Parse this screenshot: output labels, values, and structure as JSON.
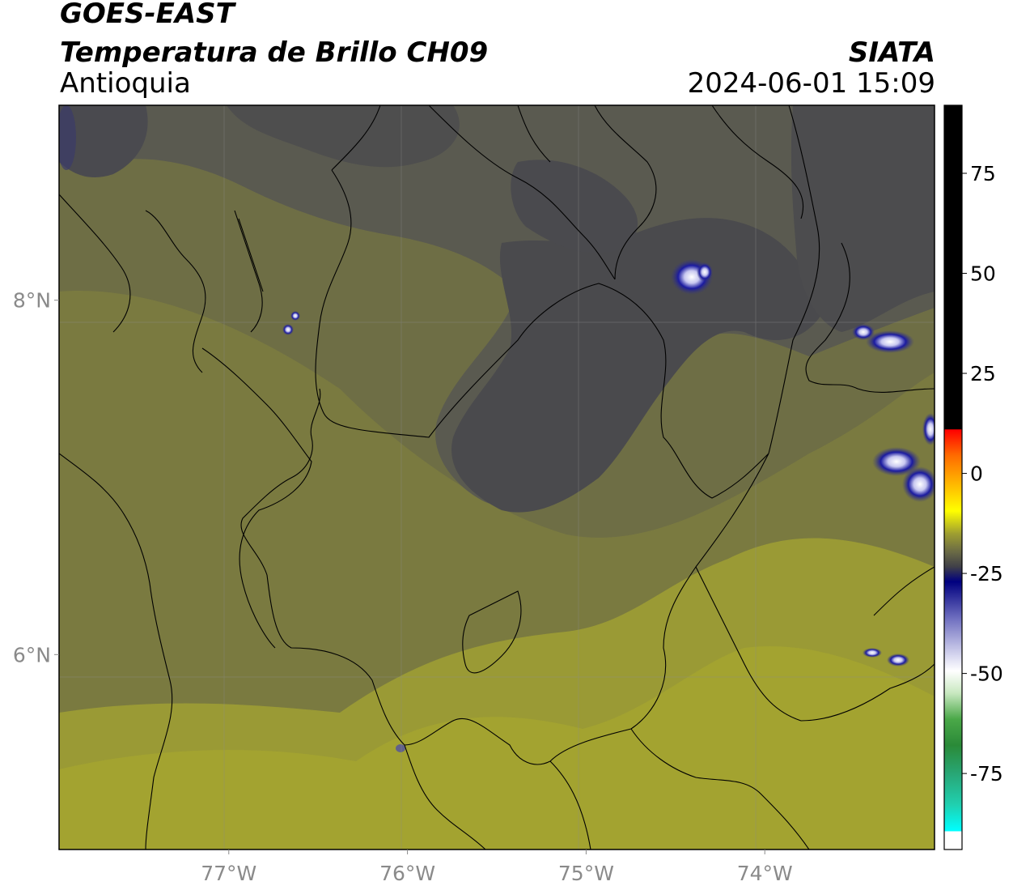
{
  "header": {
    "satellite": "GOES-EAST",
    "product": "Temperatura de Brillo CH09",
    "organization": "SIATA",
    "region": "Antioquia",
    "datetime": "2024-06-01 15:09"
  },
  "map": {
    "lon_range": [
      -77.95,
      -73.05
    ],
    "lat_range": [
      4.9,
      9.1
    ],
    "lon_ticks": [
      {
        "value": -77,
        "label": "77°W"
      },
      {
        "value": -76,
        "label": "76°W"
      },
      {
        "value": -75,
        "label": "75°W"
      },
      {
        "value": -74,
        "label": "74°W"
      }
    ],
    "lat_ticks": [
      {
        "value": 8,
        "label": "8°N"
      },
      {
        "value": 6,
        "label": "6°N"
      }
    ],
    "gridlines": true
  },
  "colorbar": {
    "range": [
      -94,
      92
    ],
    "ticks": [
      {
        "value": 75,
        "label": "75"
      },
      {
        "value": 50,
        "label": "50"
      },
      {
        "value": 25,
        "label": "25"
      },
      {
        "value": 0,
        "label": "0"
      },
      {
        "value": -25,
        "label": "-25"
      },
      {
        "value": -50,
        "label": "-50"
      },
      {
        "value": -75,
        "label": "-75"
      }
    ],
    "colors": {
      "black_segment": "#000000",
      "red": "#ff0000",
      "orange": "#ff8c00",
      "yellow": "#ffff00",
      "olive": "#808030",
      "gray": "#505050",
      "navy": "#00007f",
      "lightblue": "#b4b4e6",
      "white": "#ffffff",
      "green": "#32a032",
      "darkgreen": "#1e7820",
      "teal": "#20c8a0",
      "cyan": "#00ffff"
    }
  }
}
